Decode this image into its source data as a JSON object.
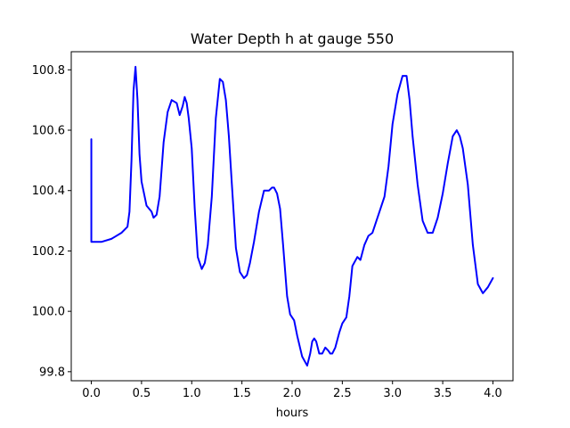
{
  "chart_data": {
    "type": "line",
    "title": "Water Depth h at gauge 550",
    "xlabel": "hours",
    "ylabel": "",
    "xlim": [
      -0.2,
      4.2
    ],
    "ylim": [
      99.77,
      100.86
    ],
    "xticks": [
      0.0,
      0.5,
      1.0,
      1.5,
      2.0,
      2.5,
      3.0,
      3.5,
      4.0
    ],
    "xtick_labels": [
      "0.0",
      "0.5",
      "1.0",
      "1.5",
      "2.0",
      "2.5",
      "3.0",
      "3.5",
      "4.0"
    ],
    "yticks": [
      99.8,
      100.0,
      100.2,
      100.4,
      100.6,
      100.8
    ],
    "ytick_labels": [
      "99.8",
      "100.0",
      "100.2",
      "100.4",
      "100.6",
      "100.8"
    ],
    "grid": false,
    "series": [
      {
        "color": "#0000ff",
        "x": [
          0.0,
          0.0,
          0.1,
          0.2,
          0.3,
          0.36,
          0.38,
          0.4,
          0.42,
          0.44,
          0.46,
          0.48,
          0.5,
          0.55,
          0.6,
          0.62,
          0.65,
          0.68,
          0.72,
          0.76,
          0.8,
          0.85,
          0.88,
          0.91,
          0.93,
          0.95,
          0.97,
          1.0,
          1.03,
          1.06,
          1.1,
          1.13,
          1.16,
          1.2,
          1.24,
          1.28,
          1.31,
          1.34,
          1.37,
          1.4,
          1.44,
          1.48,
          1.52,
          1.55,
          1.58,
          1.62,
          1.67,
          1.72,
          1.77,
          1.8,
          1.82,
          1.85,
          1.88,
          1.91,
          1.95,
          1.98,
          2.0,
          2.02,
          2.05,
          2.1,
          2.15,
          2.18,
          2.2,
          2.22,
          2.24,
          2.27,
          2.3,
          2.33,
          2.36,
          2.38,
          2.4,
          2.43,
          2.47,
          2.5,
          2.54,
          2.57,
          2.6,
          2.65,
          2.68,
          2.72,
          2.76,
          2.8,
          2.84,
          2.88,
          2.92,
          2.96,
          3.0,
          3.05,
          3.1,
          3.14,
          3.17,
          3.2,
          3.25,
          3.3,
          3.35,
          3.4,
          3.45,
          3.5,
          3.55,
          3.6,
          3.64,
          3.67,
          3.7,
          3.75,
          3.8,
          3.85,
          3.9,
          3.95,
          4.0
        ],
        "y": [
          100.57,
          100.23,
          100.23,
          100.24,
          100.26,
          100.28,
          100.33,
          100.5,
          100.73,
          100.81,
          100.7,
          100.52,
          100.43,
          100.35,
          100.33,
          100.31,
          100.32,
          100.38,
          100.56,
          100.66,
          100.7,
          100.69,
          100.65,
          100.68,
          100.71,
          100.69,
          100.64,
          100.54,
          100.34,
          100.18,
          100.14,
          100.16,
          100.22,
          100.38,
          100.64,
          100.77,
          100.76,
          100.7,
          100.58,
          100.42,
          100.21,
          100.13,
          100.11,
          100.12,
          100.16,
          100.23,
          100.33,
          100.4,
          100.4,
          100.41,
          100.41,
          100.39,
          100.34,
          100.22,
          100.05,
          99.99,
          99.98,
          99.97,
          99.92,
          99.85,
          99.82,
          99.86,
          99.9,
          99.91,
          99.9,
          99.86,
          99.86,
          99.88,
          99.87,
          99.86,
          99.86,
          99.88,
          99.93,
          99.96,
          99.98,
          100.05,
          100.15,
          100.18,
          100.17,
          100.22,
          100.25,
          100.26,
          100.3,
          100.34,
          100.38,
          100.48,
          100.62,
          100.72,
          100.78,
          100.78,
          100.7,
          100.58,
          100.42,
          100.3,
          100.26,
          100.26,
          100.31,
          100.39,
          100.49,
          100.58,
          100.6,
          100.58,
          100.54,
          100.42,
          100.22,
          100.09,
          100.06,
          100.08,
          100.11
        ]
      }
    ]
  }
}
